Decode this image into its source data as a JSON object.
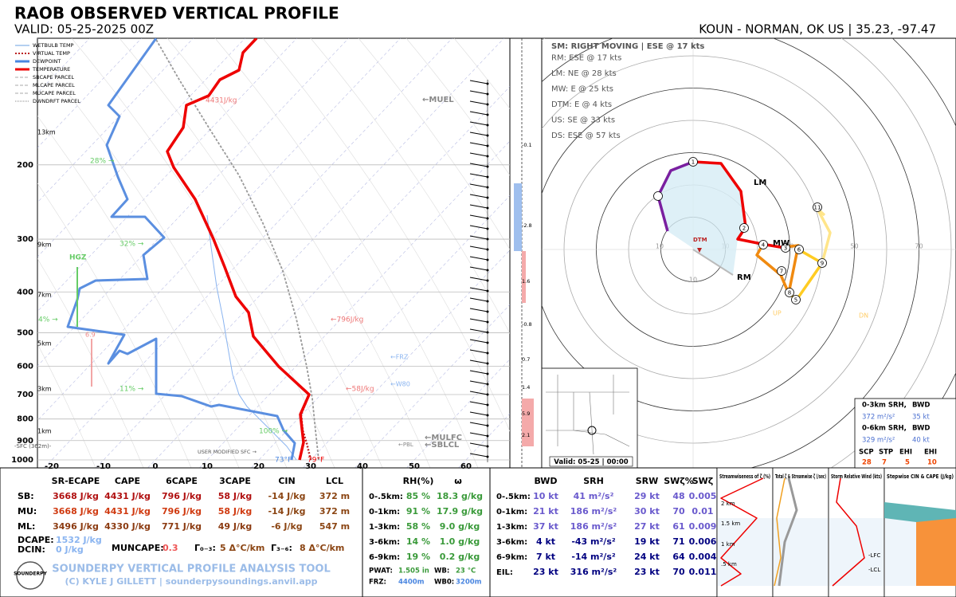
{
  "header": {
    "title": "RAOB OBSERVED VERTICAL PROFILE",
    "valid": "VALID: 05-25-2025 00Z",
    "station": "KOUN - NORMAN, OK US | 35.23, -97.47"
  },
  "skewt": {
    "pressure_ticks": [
      200,
      300,
      400,
      500,
      600,
      700,
      800,
      900,
      1000
    ],
    "temp_ticks": [
      -20,
      -10,
      0,
      10,
      20,
      30,
      40,
      50,
      60
    ],
    "height_labels": [
      "13km",
      "9km",
      "7km",
      "5km",
      "3km",
      "1km"
    ],
    "legend": [
      "WETBULB TEMP",
      "VIRTUAL TEMP",
      "DEWPOINT",
      "TEMPERATURE",
      "SBCAPE PARCEL",
      "MLCAPE PARCEL",
      "MUCAPE PARCEL",
      "DWNDRFT PARCEL"
    ],
    "annotations": [
      "←MUEL",
      "4431J/kg",
      "←796J/kg",
      "←58J/kg",
      "←FRZ",
      "←W80",
      "←MULFC",
      "←SBLCL",
      "←PBL",
      "28% →",
      "32% →",
      "4% →",
      "11% →",
      "100% →",
      "HGZ",
      "6.9",
      "-SFC (362m)-",
      "USER MODIFIED SFC →",
      "73°F",
      "79°F"
    ],
    "strip_labels": [
      "-0.1",
      "-2.8",
      "1.6",
      "-0.8",
      "0.7",
      "1.4",
      "5.9",
      "2.1"
    ]
  },
  "hodograph": {
    "lines": [
      "SM: RIGHT MOVING | ESE @ 17 kts",
      "RM: ESE @ 17 kts",
      "LM: NE @ 28 kts",
      "MW: E @ 25 kts",
      "DTM: E @ 4 kts",
      "US: SE @ 33 kts",
      "DS: ESE @ 57 kts"
    ],
    "rings": [
      10,
      30,
      50,
      70
    ],
    "markers": [
      "LM",
      "MW",
      "RM",
      "DTM",
      "UP",
      "DN"
    ],
    "points": [
      "1",
      "2",
      "3",
      "4",
      "5",
      "6",
      "7",
      "8",
      "9",
      "11"
    ],
    "map_label": "Valid: 05-25 | 00:00",
    "srh_box": [
      [
        "0-3km SRH,",
        "BWD"
      ],
      [
        "372 m²/s²",
        "35 kt"
      ],
      [
        "0-6km SRH,",
        "BWD"
      ],
      [
        "329 m²/s²",
        "40 kt"
      ],
      [
        "SCP",
        "STP",
        "EHI",
        "EHI"
      ],
      [
        "28",
        "7",
        "5",
        "10"
      ]
    ]
  },
  "thermo": {
    "headers": [
      "SR-ECAPE",
      "CAPE",
      "6CAPE",
      "3CAPE",
      "CIN",
      "LCL"
    ],
    "rows": [
      {
        "label": "SB:",
        "cells": [
          "3668 J/kg",
          "4431 J/kg",
          "796 J/kg",
          "58 J/kg",
          "-14 J/kg",
          "372 m"
        ]
      },
      {
        "label": "MU:",
        "cells": [
          "3668 J/kg",
          "4431 J/kg",
          "796 J/kg",
          "58 J/kg",
          "-14 J/kg",
          "372 m"
        ]
      },
      {
        "label": "ML:",
        "cells": [
          "3496 J/kg",
          "4330 J/kg",
          "771 J/kg",
          "49 J/kg",
          "-6 J/kg",
          "547 m"
        ]
      }
    ],
    "extras": [
      [
        "DCAPE:",
        "1532 J/kg"
      ],
      [
        "DCIN:",
        "0 J/kg"
      ],
      [
        "MUNCAPE:",
        "0.3"
      ],
      [
        "Γ₀₋₃:",
        "5 Δ°C/km"
      ],
      [
        "Γ₃₋₆:",
        "8 Δ°C/km"
      ]
    ]
  },
  "moisture": {
    "headers": [
      "RH(%)",
      "ω"
    ],
    "rows": [
      [
        "0-.5km:",
        "85 %",
        "18.3 g/kg"
      ],
      [
        "0-1km:",
        "91 %",
        "17.9 g/kg"
      ],
      [
        "1-3km:",
        "58 %",
        "9.0 g/kg"
      ],
      [
        "3-6km:",
        "14 %",
        "1.0 g/kg"
      ],
      [
        "6-9km:",
        "19 %",
        "0.2 g/kg"
      ]
    ],
    "extras": [
      [
        "PWAT:",
        "1.505 in"
      ],
      [
        "WB:",
        "23 °C"
      ],
      [
        "FRZ:",
        "4400m"
      ],
      [
        "WB0:",
        "3200m"
      ]
    ]
  },
  "kinematic": {
    "headers": [
      "BWD",
      "SRH",
      "SRW",
      "SWζ%",
      "SWζ"
    ],
    "rows": [
      [
        "0-.5km:",
        "10 kt",
        "41 m²/s²",
        "29 kt",
        "48",
        "0.005"
      ],
      [
        "0-1km:",
        "21 kt",
        "186 m²/s²",
        "30 kt",
        "70",
        "0.01"
      ],
      [
        "1-3km:",
        "37 kt",
        "186 m²/s²",
        "27 kt",
        "61",
        "0.009"
      ],
      [
        "3-6km:",
        "4 kt",
        "-43 m²/s²",
        "19 kt",
        "71",
        "0.006"
      ],
      [
        "6-9km:",
        "7 kt",
        "-14 m²/s²",
        "24 kt",
        "64",
        "0.004"
      ],
      [
        "EIL:",
        "23 kt",
        "316 m²/s²",
        "23 kt",
        "70",
        "0.011"
      ]
    ]
  },
  "panels": [
    "Streamwiseness of ζ (%)",
    "Total ζ & Streamwise ζ (/sec)",
    "Storm Relative Wind (kts)",
    "Stepwise CIN & CAPE (J/kg)"
  ],
  "panel_labels": [
    "2 km",
    "1.5 km",
    "1 km",
    ".5 km",
    "-LFC",
    "-LCL"
  ],
  "footer": {
    "tool": "SOUNDERPY VERTICAL PROFILE ANALYSIS TOOL",
    "credit": "(C) KYLE J GILLETT | sounderpysoundings.anvil.app",
    "logo": "SOUNDERPY"
  }
}
